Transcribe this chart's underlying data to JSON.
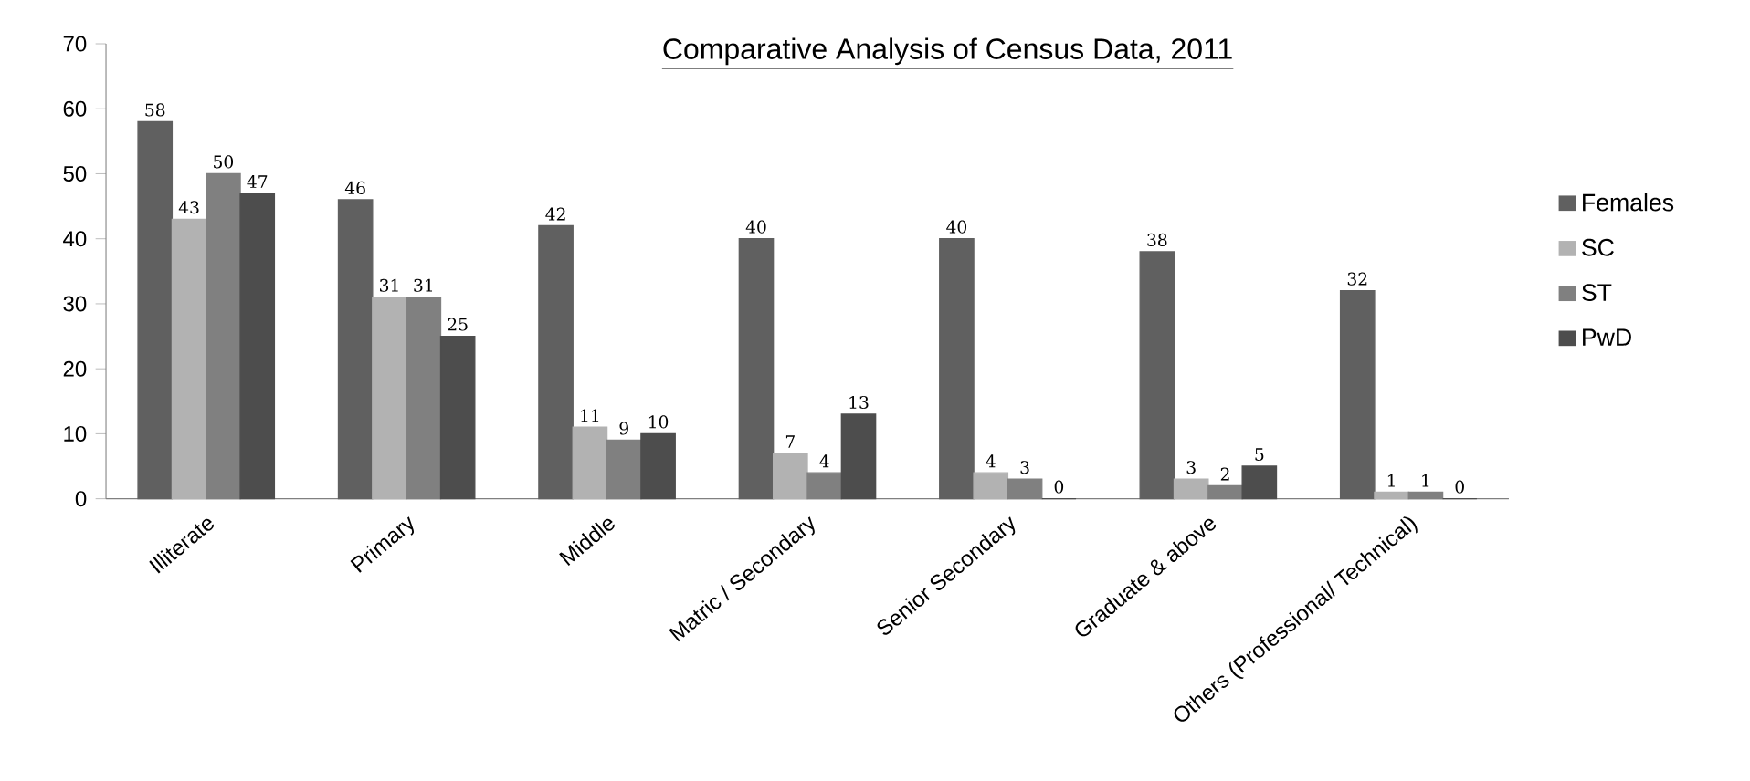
{
  "chart_data": {
    "type": "bar",
    "title": "Comparative Analysis of Census Data, 2011",
    "categories": [
      "Illiterate",
      "Primary",
      "Middle",
      "Matric / Secondary",
      "Senior Secondary",
      "Graduate & above",
      "Others (Professional/ Technical)"
    ],
    "series": [
      {
        "name": "Females",
        "color": "#606060",
        "values": [
          58,
          46,
          42,
          40,
          40,
          38,
          32
        ]
      },
      {
        "name": "SC",
        "color": "#b2b2b2",
        "values": [
          43,
          31,
          11,
          7,
          4,
          3,
          1
        ]
      },
      {
        "name": "ST",
        "color": "#808080",
        "values": [
          50,
          31,
          9,
          4,
          3,
          2,
          1
        ]
      },
      {
        "name": "PwD",
        "color": "#4d4d4d",
        "values": [
          47,
          25,
          10,
          13,
          0,
          5,
          0
        ]
      }
    ],
    "ylim": [
      0,
      70
    ],
    "yticks": [
      0,
      10,
      20,
      30,
      40,
      50,
      60,
      70
    ],
    "data_labels": true,
    "legend": "right",
    "grid": false
  }
}
